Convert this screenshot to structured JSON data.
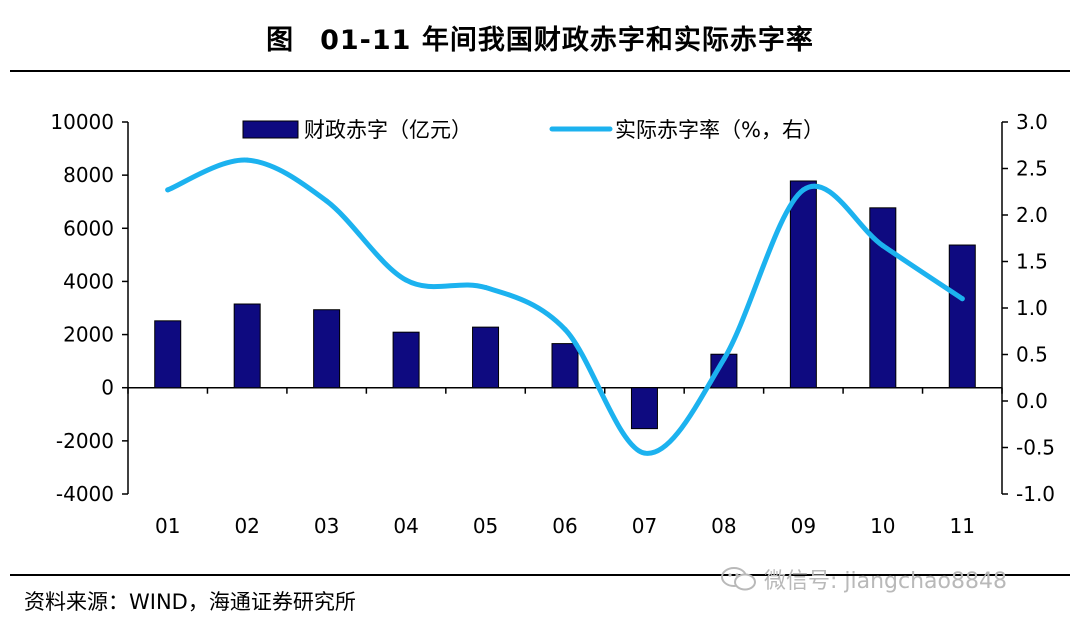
{
  "title": {
    "figure_label": "图",
    "text": "01-11 年间我国财政赤字和实际赤字率"
  },
  "source": "资料来源：WIND，海通证券研究所",
  "watermark": "微信号: jiangchao8848",
  "colors": {
    "bar": "#0e0a80",
    "line": "#1cb2ef",
    "axis": "#000000"
  },
  "chart_data": {
    "type": "bar",
    "categories": [
      "01",
      "02",
      "03",
      "04",
      "05",
      "06",
      "07",
      "08",
      "09",
      "10",
      "11"
    ],
    "series": [
      {
        "name": "财政赤字（亿元）",
        "type": "bar",
        "axis": "left",
        "values": [
          2517,
          3150,
          2935,
          2090,
          2280,
          1660,
          -1540,
          1260,
          7780,
          6770,
          5370
        ]
      },
      {
        "name": "实际赤字率（%，右）",
        "type": "line",
        "axis": "right",
        "values": [
          2.27,
          2.59,
          2.15,
          1.3,
          1.22,
          0.77,
          -0.56,
          0.45,
          2.27,
          1.67,
          1.1
        ]
      }
    ],
    "y_left": {
      "ylim": [
        -4000,
        10000
      ],
      "ticks": [
        -4000,
        -2000,
        0,
        2000,
        4000,
        6000,
        8000,
        10000
      ],
      "tick_labels": [
        "-4000",
        "-2000",
        "0",
        "2000",
        "4000",
        "6000",
        "8000",
        "10000"
      ]
    },
    "y_right": {
      "ylim": [
        -1.0,
        3.0
      ],
      "ticks": [
        -1.0,
        -0.5,
        0.0,
        0.5,
        1.0,
        1.5,
        2.0,
        2.5,
        3.0
      ],
      "tick_labels": [
        "-1.0",
        "-0.5",
        "0.0",
        "0.5",
        "1.0",
        "1.5",
        "2.0",
        "2.5",
        "3.0"
      ]
    },
    "legend_position": "top-center",
    "grid": false
  }
}
